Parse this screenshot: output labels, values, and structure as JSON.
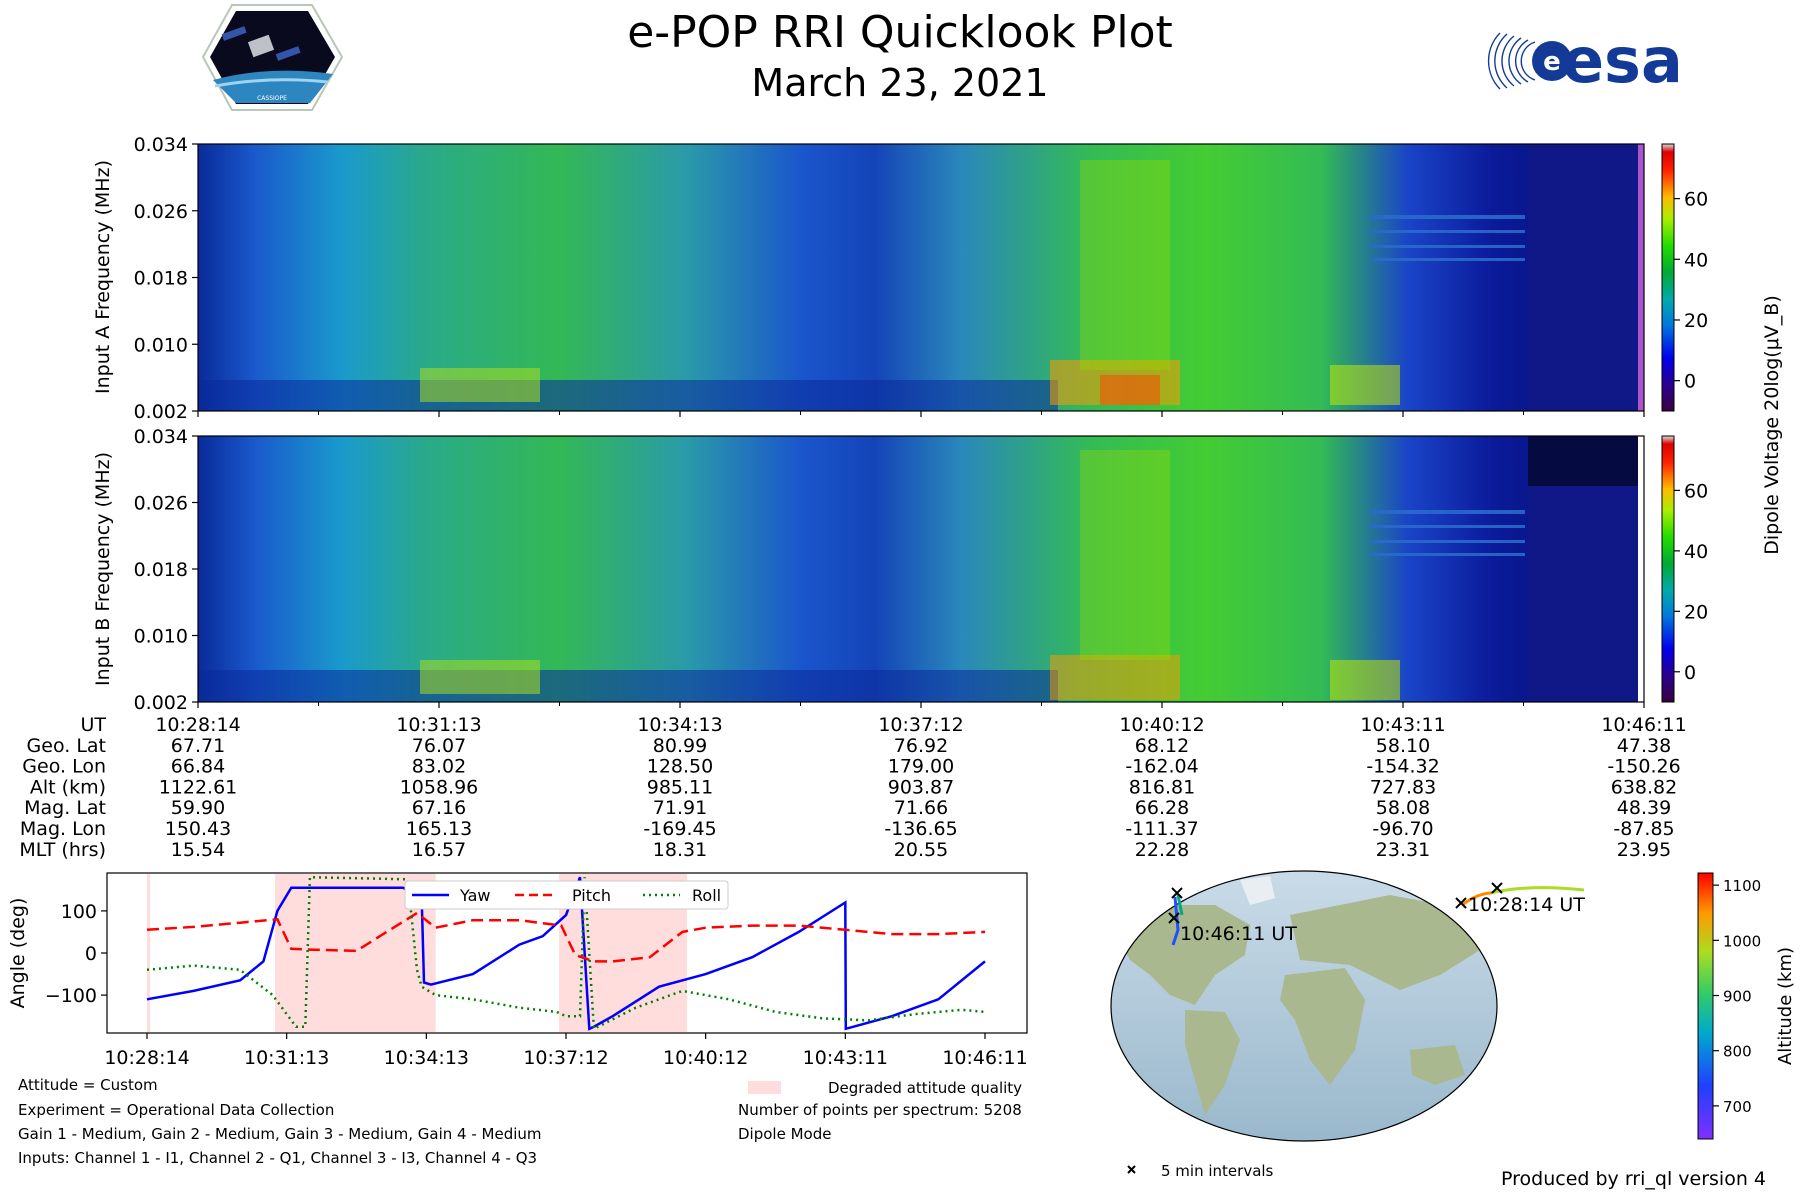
{
  "header": {
    "title": "e-POP RRI Quicklook Plot",
    "date": "March 23, 2021",
    "left_logo_text": "CASSIOPE",
    "right_logo_text": "esa"
  },
  "chart_data": [
    {
      "type": "heatmap",
      "name": "input-a-spectrogram",
      "ylabel": "Input A Frequency (MHz)",
      "yticks": [
        "0.034",
        "0.026",
        "0.018",
        "0.010",
        "0.002"
      ],
      "ylim": [
        0.002,
        0.034
      ],
      "time_range": [
        "10:28:14",
        "10:46:11"
      ],
      "colorbar": {
        "label": "Dipole Voltage 20log(μV_B)",
        "ticks": [
          "60",
          "40",
          "20",
          "0"
        ],
        "range": [
          -10,
          78
        ]
      }
    },
    {
      "type": "heatmap",
      "name": "input-b-spectrogram",
      "ylabel": "Input B Frequency (MHz)",
      "yticks": [
        "0.034",
        "0.026",
        "0.018",
        "0.010",
        "0.002"
      ],
      "ylim": [
        0.002,
        0.034
      ],
      "time_range": [
        "10:28:14",
        "10:46:11"
      ],
      "colorbar": {
        "label": "Dipole Voltage 20log(μV_B)",
        "ticks": [
          "60",
          "40",
          "20",
          "0"
        ],
        "range": [
          -10,
          78
        ]
      }
    },
    {
      "type": "table",
      "name": "ephemeris-table",
      "rows": [
        {
          "label": "UT",
          "values": [
            "10:28:14",
            "10:31:13",
            "10:34:13",
            "10:37:12",
            "10:40:12",
            "10:43:11",
            "10:46:11"
          ]
        },
        {
          "label": "Geo. Lat",
          "values": [
            "67.71",
            "76.07",
            "80.99",
            "76.92",
            "68.12",
            "58.10",
            "47.38"
          ]
        },
        {
          "label": "Geo. Lon",
          "values": [
            "66.84",
            "83.02",
            "128.50",
            "179.00",
            "-162.04",
            "-154.32",
            "-150.26"
          ]
        },
        {
          "label": "Alt (km)",
          "values": [
            "1122.61",
            "1058.96",
            "985.11",
            "903.87",
            "816.81",
            "727.83",
            "638.82"
          ]
        },
        {
          "label": "Mag. Lat",
          "values": [
            "59.90",
            "67.16",
            "71.91",
            "71.66",
            "66.28",
            "58.08",
            "48.39"
          ]
        },
        {
          "label": "Mag. Lon",
          "values": [
            "150.43",
            "165.13",
            "-169.45",
            "-136.65",
            "-111.37",
            "-96.70",
            "-87.85"
          ]
        },
        {
          "label": "MLT (hrs)",
          "values": [
            "15.54",
            "16.57",
            "18.31",
            "20.55",
            "22.28",
            "23.31",
            "23.95"
          ]
        }
      ]
    },
    {
      "type": "line",
      "name": "attitude-plot",
      "ylabel": "Angle (deg)",
      "ylim": [
        -190,
        190
      ],
      "yticks": [
        100,
        0,
        -100
      ],
      "xlim": [
        0,
        18
      ],
      "xticks": [
        0,
        3,
        6,
        9,
        12,
        15,
        18
      ],
      "xticklabels": [
        "10:28:14",
        "10:31:13",
        "10:34:13",
        "10:37:12",
        "10:40:12",
        "10:43:11",
        "10:46:11"
      ],
      "shaded_intervals": [
        [
          0,
          0.05
        ],
        [
          2.75,
          6.2
        ],
        [
          8.85,
          11.6
        ]
      ],
      "shaded_label": "Degraded attitude quality",
      "shaded_color": "#ffdddd",
      "series": [
        {
          "name": "Yaw",
          "color": "#0000ff",
          "dash": "",
          "x": [
            0,
            1,
            2,
            2.5,
            2.8,
            3.1,
            4.5,
            5.5,
            5.9,
            5.95,
            6.1,
            7,
            8,
            8.5,
            9,
            9.3,
            9.5,
            9.6,
            10,
            11,
            12,
            13,
            14,
            15,
            15.01,
            16,
            17,
            18
          ],
          "y": [
            -110,
            -90,
            -65,
            -20,
            100,
            155,
            155,
            155,
            130,
            -70,
            -75,
            -50,
            20,
            40,
            90,
            180,
            -180,
            -175,
            -150,
            -80,
            -50,
            -10,
            50,
            120,
            -180,
            -150,
            -110,
            -20
          ]
        },
        {
          "name": "Pitch",
          "color": "#ff0000",
          "dash": "12,6",
          "x": [
            0,
            1,
            2,
            2.8,
            3.1,
            3.5,
            4.5,
            5,
            5.8,
            6.2,
            7,
            8,
            8.9,
            9.2,
            9.6,
            10,
            10.8,
            11.5,
            12,
            13,
            14,
            15,
            16,
            17,
            18
          ],
          "y": [
            55,
            62,
            72,
            80,
            10,
            8,
            5,
            40,
            95,
            60,
            78,
            78,
            65,
            -5,
            -20,
            -20,
            -10,
            50,
            60,
            65,
            65,
            55,
            45,
            45,
            50
          ]
        },
        {
          "name": "Roll",
          "color": "#008000",
          "dash": "2,4",
          "x": [
            0,
            1,
            2,
            2.7,
            3.2,
            3.4,
            3.5,
            5.6,
            5.8,
            5.9,
            6.2,
            7,
            8,
            8.8,
            9,
            9.3,
            9.4,
            9.6,
            10.5,
            11.5,
            12.5,
            13.5,
            14.5,
            15.5,
            16.5,
            17.5,
            18
          ],
          "y": [
            -40,
            -30,
            -40,
            -100,
            -175,
            -175,
            180,
            175,
            -40,
            -80,
            -100,
            -110,
            -130,
            -140,
            -150,
            -150,
            180,
            -180,
            -130,
            -90,
            -110,
            -140,
            -155,
            -160,
            -145,
            -135,
            -140
          ]
        }
      ],
      "legend": [
        "Yaw",
        "Pitch",
        "Roll"
      ]
    },
    {
      "type": "scatter",
      "name": "orbit-map",
      "colorbar": {
        "label": "Altitude (km)",
        "ticks": [
          "1100",
          "1000",
          "900",
          "800",
          "700"
        ],
        "range": [
          640,
          1122
        ]
      },
      "track_labels": [
        "10:28:14 UT",
        "10:46:11 UT"
      ],
      "marker_legend": "5 min intervals"
    }
  ],
  "footer": {
    "attitude": "Attitude = Custom",
    "experiment": "Experiment = Operational Data Collection",
    "gains": "Gain 1 - Medium, Gain 2 - Medium, Gain 3 - Medium, Gain 4 - Medium",
    "inputs": "Inputs: Channel 1 - I1, Channel 2 - Q1, Channel 3 - I3, Channel 4 - Q3",
    "points": "Number of points per spectrum: 5208",
    "mode": "Dipole Mode",
    "produced_by": "Produced by rri_ql version 4"
  },
  "colors": {
    "accent": "#003399",
    "degraded": "#ffdddd"
  }
}
